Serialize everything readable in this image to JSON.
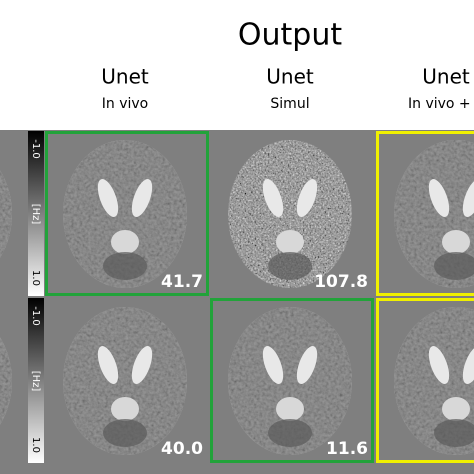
{
  "header": {
    "title": "Output"
  },
  "columns": [
    {
      "title": "Unet",
      "subtitle": "In vivo"
    },
    {
      "title": "Unet",
      "subtitle": "Simul"
    },
    {
      "title": "Unet",
      "subtitle": "In vivo + S"
    }
  ],
  "colorbars": [
    {
      "top": "-1.0",
      "unit": "[Hz]",
      "bottom": "1.0"
    },
    {
      "top": "-1.0",
      "unit": "[Hz]",
      "bottom": "1.0"
    }
  ],
  "rows": [
    [
      "41.7",
      "107.8"
    ],
    [
      "40.0",
      "11.6"
    ]
  ]
}
